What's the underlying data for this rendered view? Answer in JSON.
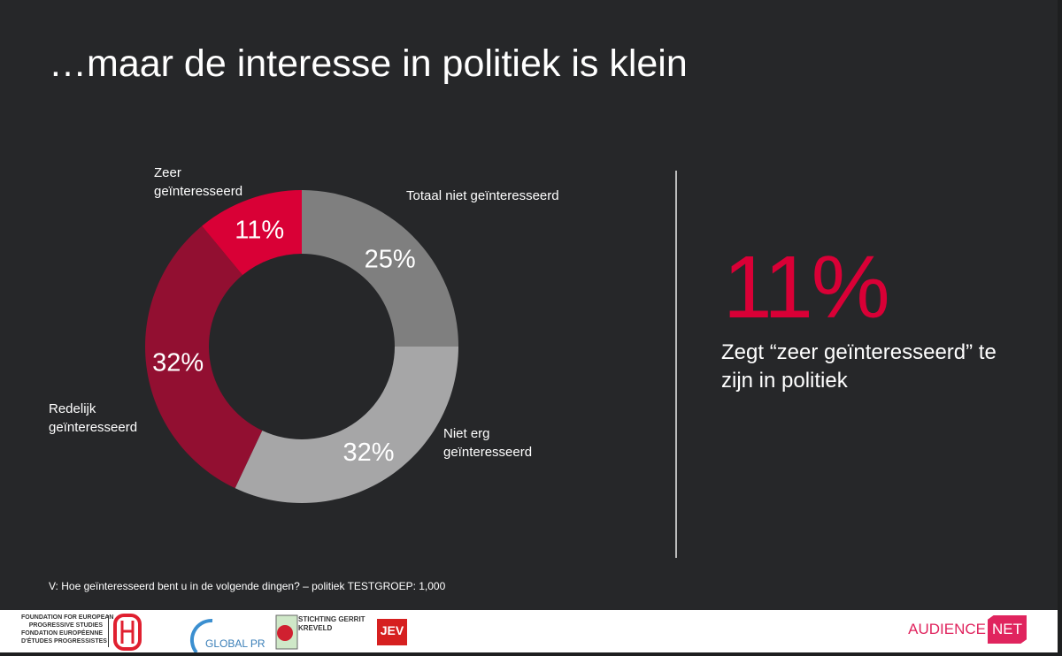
{
  "title": "…maar de interesse in politiek is klein",
  "chart_data": {
    "type": "pie",
    "donut": true,
    "start": "top, clockwise",
    "categories": [
      "Totaal niet geïnteresseerd",
      "Niet erg geïnteresseerd",
      "Redelijk geïnteresseerd",
      "Zeer geïnteresseerd"
    ],
    "values": [
      25,
      32,
      32,
      11
    ],
    "data_labels": [
      "25%",
      "32%",
      "32%",
      "11%"
    ],
    "label_lines": [
      [
        "Totaal niet geïnteresseerd"
      ],
      [
        "Niet erg",
        "geïnteresseerd"
      ],
      [
        "Redelijk",
        "geïnteresseerd"
      ],
      [
        "Zeer",
        "geïnteresseerd"
      ]
    ],
    "colors": [
      "#7f7f7f",
      "#a6a6a7",
      "#920f31",
      "#d90036"
    ]
  },
  "highlight": {
    "value": "11%",
    "text": "Zegt “zeer geïnteresseerd” te zijn in politiek",
    "color": "#d90036"
  },
  "note": "V: Hoe geïnteresseerd bent u in de volgende dingen? – politiek TESTGROEP: 1,000",
  "footer": {
    "feps": [
      "FOUNDATION FOR EUROPEAN",
      "PROGRESSIVE STUDIES",
      "FONDATION EUROPÉENNE",
      "D'ÉTUDES PROGRESSISTES"
    ],
    "global_progress": "GLOBAL PROGRESS",
    "stichting": "STICHTING GERRIT KREVELD",
    "jev": "JEV",
    "audience": "AUDIENCE",
    "net": "NET"
  }
}
